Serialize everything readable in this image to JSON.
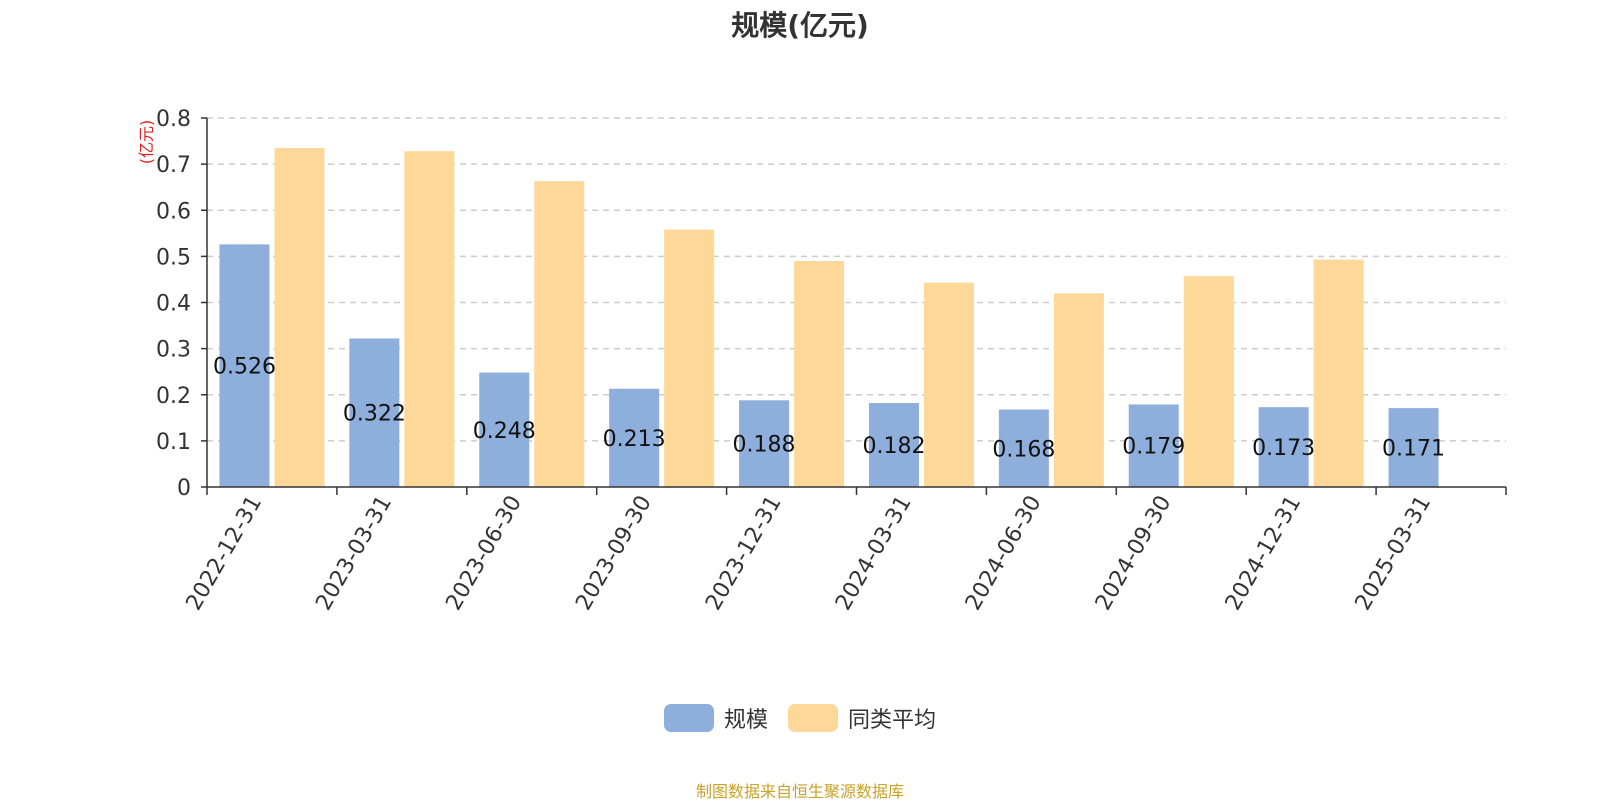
{
  "chart_data": {
    "type": "bar",
    "title": "规模(亿元)",
    "ylabel": "(亿元)",
    "xlabel": "",
    "categories": [
      "2022-12-31",
      "2023-03-31",
      "2023-06-30",
      "2023-09-30",
      "2023-12-31",
      "2024-03-31",
      "2024-06-30",
      "2024-09-30",
      "2024-12-31",
      "2025-03-31"
    ],
    "series": [
      {
        "name": "规模",
        "color": "#8eaedb",
        "values": [
          0.526,
          0.322,
          0.248,
          0.213,
          0.188,
          0.182,
          0.168,
          0.179,
          0.173,
          0.171
        ],
        "show_labels": true
      },
      {
        "name": "同类平均",
        "color": "#fdd899",
        "values": [
          0.735,
          0.728,
          0.663,
          0.558,
          0.49,
          0.443,
          0.42,
          0.457,
          0.493,
          null
        ],
        "show_labels": false
      }
    ],
    "ylim": [
      0,
      0.8
    ],
    "yticks": [
      "0",
      "0.1",
      "0.2",
      "0.3",
      "0.4",
      "0.5",
      "0.6",
      "0.7",
      "0.8"
    ],
    "grid": true,
    "legend_position": "bottom"
  },
  "footer": {
    "source": "制图数据来自恒生聚源数据库"
  },
  "colors": {
    "ylabel": "#e02020",
    "source": "#c9a227"
  }
}
